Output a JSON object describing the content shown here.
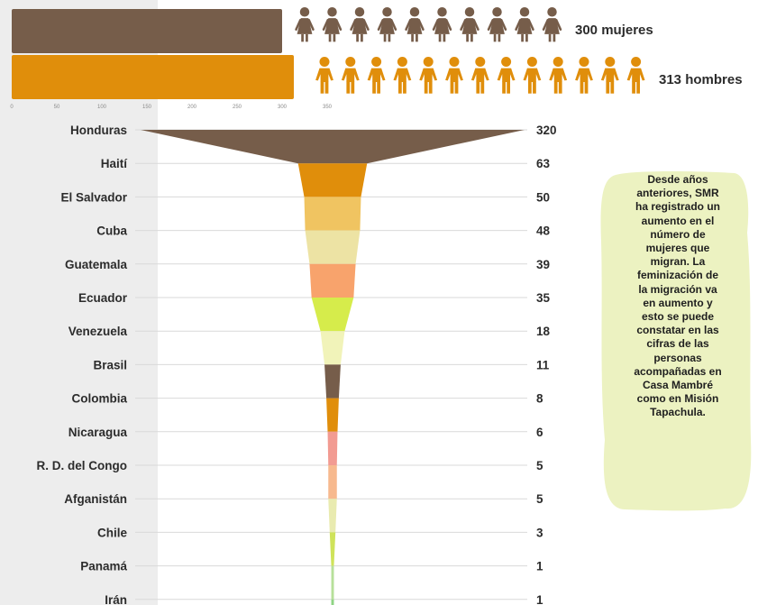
{
  "colors": {
    "women": "#765d4a",
    "men": "#e08e0b",
    "grid": "#d9d9d9",
    "note_bg": "#ecf2c1"
  },
  "icons": {
    "women": "woman-icon",
    "men": "man-icon"
  },
  "note": {
    "text": "Desde años\nanteriores, SMR\nha registrado un\naumento en el\nnúmero de\nmujeres que\nmigran. La\nfeminización de\nla migración va\nen aumento y\nesto se puede\nconstatar en las\ncifras de las\npersonas\nacompañadas en\nCasa Mambré\ncomo en Misión\nTapachula."
  },
  "chart_data": [
    {
      "type": "bar",
      "orientation": "horizontal",
      "categories": [
        "mujeres",
        "hombres"
      ],
      "values": [
        300,
        313
      ],
      "data_labels": [
        "300 mujeres",
        "313 hombres"
      ],
      "xlim": [
        0,
        350
      ],
      "xticks": [
        0,
        50,
        100,
        150,
        200,
        250,
        300,
        350
      ],
      "colors": [
        "#765d4a",
        "#e08e0b"
      ]
    },
    {
      "type": "funnel",
      "categories": [
        "Honduras",
        "Haití",
        "El Salvador",
        "Cuba",
        "Guatemala",
        "Ecuador",
        "Venezuela",
        "Brasil",
        "Colombia",
        "Nicaragua",
        "R. D. del Congo",
        "Afganistán",
        "Chile",
        "Panamá",
        "Irán"
      ],
      "values": [
        320,
        63,
        50,
        48,
        39,
        35,
        18,
        11,
        8,
        6,
        5,
        5,
        3,
        1,
        1
      ],
      "colors": [
        "#765d4a",
        "#e08e0b",
        "#f0c461",
        "#ede3a4",
        "#f8a36c",
        "#d6ec4b",
        "#f1f3b9",
        "#765d4a",
        "#e08e0b",
        "#f29b92",
        "#f7b98e",
        "#e9ebb0",
        "#cfe35a",
        "#b7e09a",
        "#8fd484"
      ]
    }
  ]
}
